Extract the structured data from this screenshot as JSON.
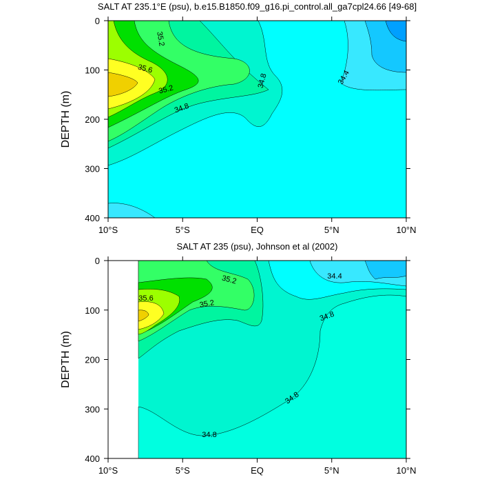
{
  "chart_data": [
    {
      "type": "contour",
      "title": "SALT AT 235.1°E (psu), b.e15.B1850.f09_g16.pi_control.all_ga7cpl24.66 [49-68]",
      "ylabel": "DEPTH (m)",
      "xlim": [
        -10,
        10
      ],
      "ylim": [
        0,
        400
      ],
      "y_reversed": true,
      "xticks": [
        {
          "value": -10,
          "label": "10°S"
        },
        {
          "value": -5,
          "label": "5°S"
        },
        {
          "value": 0,
          "label": "EQ"
        },
        {
          "value": 5,
          "label": "5°N"
        },
        {
          "value": 10,
          "label": "10°N"
        }
      ],
      "yticks": [
        0,
        100,
        200,
        300,
        400
      ],
      "contour_labels": [
        35.2,
        35.6,
        35.2,
        34.8,
        34.8,
        34.4
      ]
    },
    {
      "type": "contour",
      "title": "SALT AT 235 (psu), Johnson et al (2002)",
      "ylabel": "DEPTH (m)",
      "xlim": [
        -10,
        10
      ],
      "ylim": [
        0,
        400
      ],
      "y_reversed": true,
      "xticks": [
        {
          "value": -10,
          "label": "10°S"
        },
        {
          "value": -5,
          "label": "5°S"
        },
        {
          "value": 0,
          "label": "EQ"
        },
        {
          "value": 5,
          "label": "5°N"
        },
        {
          "value": 10,
          "label": "10°N"
        }
      ],
      "yticks": [
        0,
        100,
        200,
        300,
        400
      ],
      "contour_labels": [
        35.2,
        35.6,
        35.2,
        34.4,
        34.8,
        34.8,
        34.8
      ]
    }
  ]
}
